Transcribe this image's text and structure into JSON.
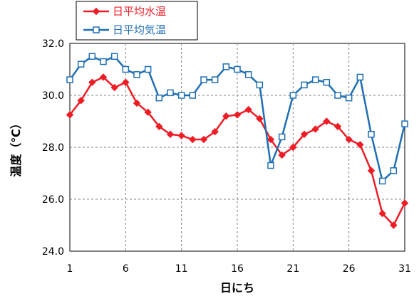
{
  "chart_data": {
    "type": "line",
    "title": "",
    "xlabel": "日にち",
    "ylabel": "温度（℃）",
    "x": [
      1,
      2,
      3,
      4,
      5,
      6,
      7,
      8,
      9,
      10,
      11,
      12,
      13,
      14,
      15,
      16,
      17,
      18,
      19,
      20,
      21,
      22,
      23,
      24,
      25,
      26,
      27,
      28,
      29,
      30,
      31
    ],
    "xticks": [
      "1",
      "6",
      "11",
      "16",
      "21",
      "26",
      "31"
    ],
    "xlim": [
      1,
      31
    ],
    "ylim": [
      24.0,
      32.0
    ],
    "yticks": [
      "24.0",
      "26.0",
      "28.0",
      "30.0",
      "32.0"
    ],
    "grid": true,
    "legend_position": "top-left",
    "series": [
      {
        "name": "日平均水温",
        "color": "#ee1c25",
        "marker": "diamond",
        "values": [
          29.25,
          29.8,
          30.5,
          30.7,
          30.3,
          30.5,
          29.7,
          29.35,
          28.8,
          28.5,
          28.45,
          28.3,
          28.3,
          28.6,
          29.2,
          29.25,
          29.45,
          29.1,
          28.3,
          27.7,
          28.0,
          28.5,
          28.7,
          29.0,
          28.8,
          28.3,
          28.1,
          27.1,
          25.45,
          25.0,
          25.85
        ]
      },
      {
        "name": "日平均気温",
        "color": "#1f6fb5",
        "marker": "square",
        "values": [
          30.6,
          31.2,
          31.5,
          31.3,
          31.5,
          31.0,
          30.8,
          31.0,
          29.9,
          30.1,
          30.0,
          30.0,
          30.6,
          30.6,
          31.1,
          31.0,
          30.8,
          30.4,
          27.3,
          28.4,
          30.0,
          30.4,
          30.6,
          30.5,
          30.0,
          29.9,
          30.7,
          28.5,
          26.7,
          27.1,
          28.9
        ]
      }
    ]
  }
}
